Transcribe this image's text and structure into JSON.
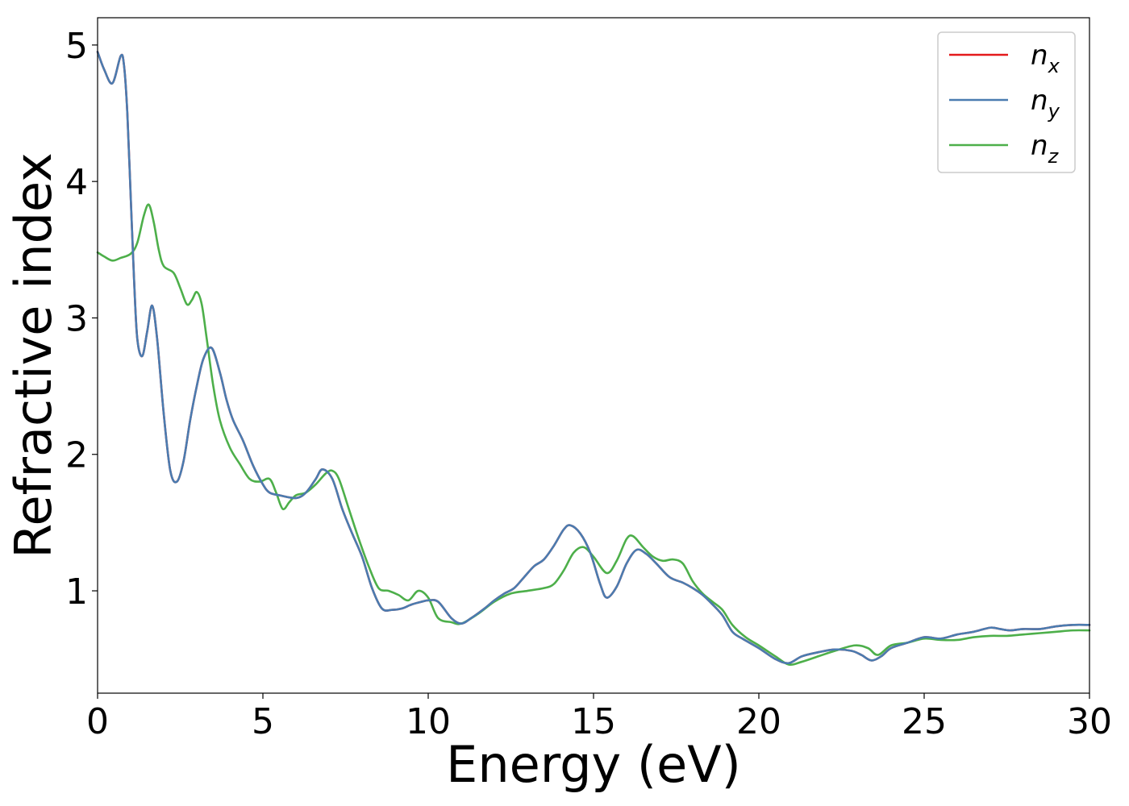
{
  "chart_data": {
    "type": "line",
    "xlabel": "Energy (eV)",
    "ylabel": "Refractive index",
    "xlim": [
      0,
      30
    ],
    "ylim": [
      0.25,
      5.2
    ],
    "xticks": [
      0,
      5,
      10,
      15,
      20,
      25,
      30
    ],
    "xtick_labels": [
      "0",
      "5",
      "10",
      "15",
      "20",
      "25",
      "30"
    ],
    "yticks": [
      1,
      2,
      3,
      4,
      5
    ],
    "ytick_labels": [
      "1",
      "2",
      "3",
      "4",
      "5"
    ],
    "grid": false,
    "legend_position": "top-right",
    "series": [
      {
        "name": "n_x",
        "label_base": "n",
        "label_sub": "x",
        "color": "#e41a1c",
        "x": [
          0,
          0.2,
          0.45,
          0.7,
          0.8,
          0.9,
          1.0,
          1.1,
          1.2,
          1.35,
          1.5,
          1.65,
          1.8,
          2.0,
          2.2,
          2.4,
          2.6,
          2.8,
          3.0,
          3.2,
          3.45,
          3.7,
          3.9,
          4.1,
          4.4,
          4.7,
          5.0,
          5.2,
          5.5,
          6.0,
          6.3,
          6.6,
          6.8,
          7.1,
          7.4,
          7.7,
          8.0,
          8.3,
          8.6,
          8.9,
          9.2,
          9.5,
          9.8,
          10.0,
          10.3,
          10.7,
          11.0,
          11.3,
          11.7,
          12.0,
          12.3,
          12.6,
          12.9,
          13.2,
          13.5,
          13.8,
          14.1,
          14.3,
          14.6,
          14.9,
          15.2,
          15.4,
          15.7,
          16.0,
          16.3,
          16.6,
          16.9,
          17.3,
          17.7,
          18.0,
          18.3,
          18.6,
          18.9,
          19.2,
          19.5,
          20.0,
          20.5,
          20.9,
          21.3,
          21.8,
          22.3,
          22.8,
          23.1,
          23.4,
          23.7,
          24.0,
          24.5,
          25.0,
          25.5,
          26.0,
          26.5,
          27.0,
          27.3,
          27.6,
          28.0,
          28.5,
          29.0,
          29.5,
          30.0
        ],
        "y": [
          4.95,
          4.82,
          4.72,
          4.92,
          4.85,
          4.5,
          3.9,
          3.3,
          2.85,
          2.72,
          2.9,
          3.09,
          2.85,
          2.3,
          1.88,
          1.8,
          1.95,
          2.25,
          2.5,
          2.7,
          2.78,
          2.6,
          2.4,
          2.25,
          2.1,
          1.92,
          1.78,
          1.72,
          1.7,
          1.68,
          1.72,
          1.82,
          1.89,
          1.82,
          1.6,
          1.42,
          1.25,
          1.02,
          0.87,
          0.86,
          0.87,
          0.9,
          0.92,
          0.93,
          0.92,
          0.8,
          0.76,
          0.8,
          0.87,
          0.93,
          0.98,
          1.02,
          1.1,
          1.18,
          1.23,
          1.33,
          1.45,
          1.48,
          1.42,
          1.28,
          1.05,
          0.95,
          1.03,
          1.2,
          1.3,
          1.27,
          1.2,
          1.1,
          1.06,
          1.02,
          0.97,
          0.9,
          0.82,
          0.7,
          0.65,
          0.58,
          0.5,
          0.47,
          0.52,
          0.55,
          0.57,
          0.56,
          0.53,
          0.49,
          0.52,
          0.58,
          0.62,
          0.66,
          0.65,
          0.68,
          0.7,
          0.73,
          0.72,
          0.71,
          0.72,
          0.72,
          0.74,
          0.75,
          0.75
        ]
      },
      {
        "name": "n_y",
        "label_base": "n",
        "label_sub": "y",
        "color": "#4a7cb0",
        "x": [
          0,
          0.2,
          0.45,
          0.7,
          0.8,
          0.9,
          1.0,
          1.1,
          1.2,
          1.35,
          1.5,
          1.65,
          1.8,
          2.0,
          2.2,
          2.4,
          2.6,
          2.8,
          3.0,
          3.2,
          3.45,
          3.7,
          3.9,
          4.1,
          4.4,
          4.7,
          5.0,
          5.2,
          5.5,
          6.0,
          6.3,
          6.6,
          6.8,
          7.1,
          7.4,
          7.7,
          8.0,
          8.3,
          8.6,
          8.9,
          9.2,
          9.5,
          9.8,
          10.0,
          10.3,
          10.7,
          11.0,
          11.3,
          11.7,
          12.0,
          12.3,
          12.6,
          12.9,
          13.2,
          13.5,
          13.8,
          14.1,
          14.3,
          14.6,
          14.9,
          15.2,
          15.4,
          15.7,
          16.0,
          16.3,
          16.6,
          16.9,
          17.3,
          17.7,
          18.0,
          18.3,
          18.6,
          18.9,
          19.2,
          19.5,
          20.0,
          20.5,
          20.9,
          21.3,
          21.8,
          22.3,
          22.8,
          23.1,
          23.4,
          23.7,
          24.0,
          24.5,
          25.0,
          25.5,
          26.0,
          26.5,
          27.0,
          27.3,
          27.6,
          28.0,
          28.5,
          29.0,
          29.5,
          30.0
        ],
        "y": [
          4.95,
          4.82,
          4.72,
          4.92,
          4.85,
          4.5,
          3.9,
          3.3,
          2.85,
          2.72,
          2.9,
          3.09,
          2.85,
          2.3,
          1.88,
          1.8,
          1.95,
          2.25,
          2.5,
          2.7,
          2.78,
          2.6,
          2.4,
          2.25,
          2.1,
          1.92,
          1.78,
          1.72,
          1.7,
          1.68,
          1.72,
          1.82,
          1.89,
          1.82,
          1.6,
          1.42,
          1.25,
          1.02,
          0.87,
          0.86,
          0.87,
          0.9,
          0.92,
          0.93,
          0.92,
          0.8,
          0.76,
          0.8,
          0.87,
          0.93,
          0.98,
          1.02,
          1.1,
          1.18,
          1.23,
          1.33,
          1.45,
          1.48,
          1.42,
          1.28,
          1.05,
          0.95,
          1.03,
          1.2,
          1.3,
          1.27,
          1.2,
          1.1,
          1.06,
          1.02,
          0.97,
          0.9,
          0.82,
          0.7,
          0.65,
          0.58,
          0.5,
          0.47,
          0.52,
          0.55,
          0.57,
          0.56,
          0.53,
          0.49,
          0.52,
          0.58,
          0.62,
          0.66,
          0.65,
          0.68,
          0.7,
          0.73,
          0.72,
          0.71,
          0.72,
          0.72,
          0.74,
          0.75,
          0.75
        ]
      },
      {
        "name": "n_z",
        "label_base": "n",
        "label_sub": "z",
        "color": "#4daf4a",
        "x": [
          0,
          0.2,
          0.45,
          0.7,
          1.0,
          1.2,
          1.4,
          1.55,
          1.7,
          1.85,
          2.0,
          2.3,
          2.5,
          2.7,
          2.85,
          3.0,
          3.15,
          3.3,
          3.5,
          3.7,
          4.0,
          4.3,
          4.6,
          4.9,
          5.2,
          5.4,
          5.6,
          5.8,
          6.0,
          6.3,
          6.6,
          6.9,
          7.1,
          7.3,
          7.6,
          7.9,
          8.2,
          8.5,
          8.8,
          9.1,
          9.4,
          9.7,
          10.0,
          10.3,
          10.7,
          11.0,
          11.5,
          12.0,
          12.5,
          13.0,
          13.5,
          13.8,
          14.1,
          14.4,
          14.7,
          15.0,
          15.4,
          15.7,
          16.0,
          16.2,
          16.5,
          16.8,
          17.1,
          17.4,
          17.7,
          18.0,
          18.3,
          18.6,
          18.9,
          19.2,
          19.6,
          20.0,
          20.5,
          20.9,
          21.3,
          21.8,
          22.3,
          22.9,
          23.3,
          23.6,
          24.0,
          24.5,
          25.0,
          25.5,
          26.0,
          26.5,
          27.0,
          27.5,
          28.0,
          28.5,
          29.0,
          29.5,
          30.0
        ],
        "y": [
          3.48,
          3.45,
          3.42,
          3.44,
          3.47,
          3.55,
          3.75,
          3.83,
          3.7,
          3.5,
          3.38,
          3.33,
          3.22,
          3.1,
          3.13,
          3.19,
          3.1,
          2.85,
          2.5,
          2.25,
          2.05,
          1.93,
          1.82,
          1.8,
          1.82,
          1.72,
          1.6,
          1.65,
          1.7,
          1.72,
          1.78,
          1.86,
          1.88,
          1.82,
          1.6,
          1.38,
          1.18,
          1.02,
          1.0,
          0.97,
          0.93,
          1.0,
          0.95,
          0.8,
          0.77,
          0.76,
          0.83,
          0.92,
          0.98,
          1.0,
          1.02,
          1.05,
          1.15,
          1.28,
          1.32,
          1.25,
          1.13,
          1.22,
          1.38,
          1.4,
          1.32,
          1.25,
          1.22,
          1.23,
          1.2,
          1.07,
          0.98,
          0.92,
          0.86,
          0.75,
          0.66,
          0.6,
          0.52,
          0.46,
          0.48,
          0.52,
          0.56,
          0.6,
          0.58,
          0.53,
          0.6,
          0.62,
          0.65,
          0.64,
          0.64,
          0.66,
          0.67,
          0.67,
          0.68,
          0.69,
          0.7,
          0.71,
          0.71
        ]
      }
    ]
  }
}
